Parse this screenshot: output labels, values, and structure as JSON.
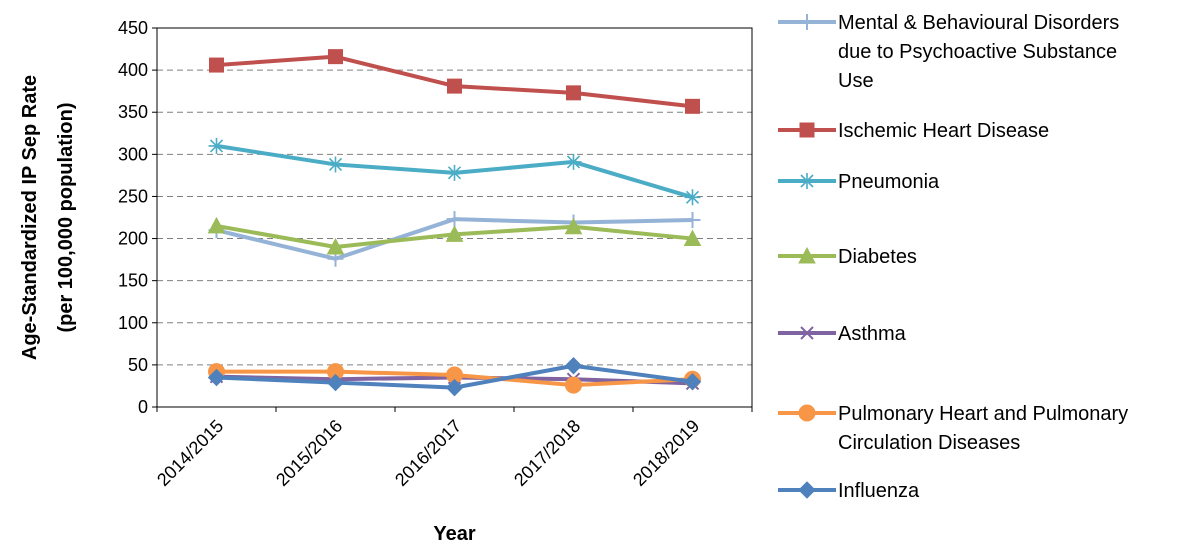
{
  "chart_data": {
    "type": "line",
    "title": "",
    "xlabel": "Year",
    "ylabel": [
      "Age-Standardized IP Sep Rate",
      "(per 100,000 population)"
    ],
    "categories": [
      "2014/2015",
      "2015/2016",
      "2016/2017",
      "2017/2018",
      "2018/2019"
    ],
    "ylim": [
      0,
      450
    ],
    "yticks": [
      "0",
      "50",
      "100",
      "150",
      "200",
      "250",
      "300",
      "350",
      "400",
      "450"
    ],
    "grid": "horizontal dashed",
    "legend_position": "right",
    "series": [
      {
        "name": [
          "Mental & Behavioural Disorders",
          "due to Psychoactive Substance",
          "Use"
        ],
        "color": "#95B3D7",
        "marker": "plus",
        "values": [
          210,
          176,
          223,
          219,
          222
        ]
      },
      {
        "name": [
          "Ischemic Heart Disease"
        ],
        "color": "#C0504D",
        "marker": "square",
        "values": [
          406,
          416,
          381,
          373,
          357
        ]
      },
      {
        "name": [
          "Pneumonia"
        ],
        "color": "#4BACC6",
        "marker": "star",
        "values": [
          310,
          288,
          278,
          291,
          249
        ]
      },
      {
        "name": [
          "Diabetes"
        ],
        "color": "#9BBB59",
        "marker": "triangle",
        "values": [
          215,
          190,
          205,
          214,
          200
        ]
      },
      {
        "name": [
          "Asthma"
        ],
        "color": "#8064A2",
        "marker": "x",
        "values": [
          36,
          33,
          35,
          33,
          28
        ]
      },
      {
        "name": [
          "Pulmonary Heart and Pulmonary",
          "Circulation Diseases"
        ],
        "color": "#F79646",
        "marker": "circle",
        "values": [
          42,
          42,
          38,
          26,
          33
        ]
      },
      {
        "name": [
          "Influenza"
        ],
        "color": "#4F81BD",
        "marker": "diamond",
        "values": [
          35,
          29,
          23,
          49,
          30
        ]
      }
    ]
  }
}
